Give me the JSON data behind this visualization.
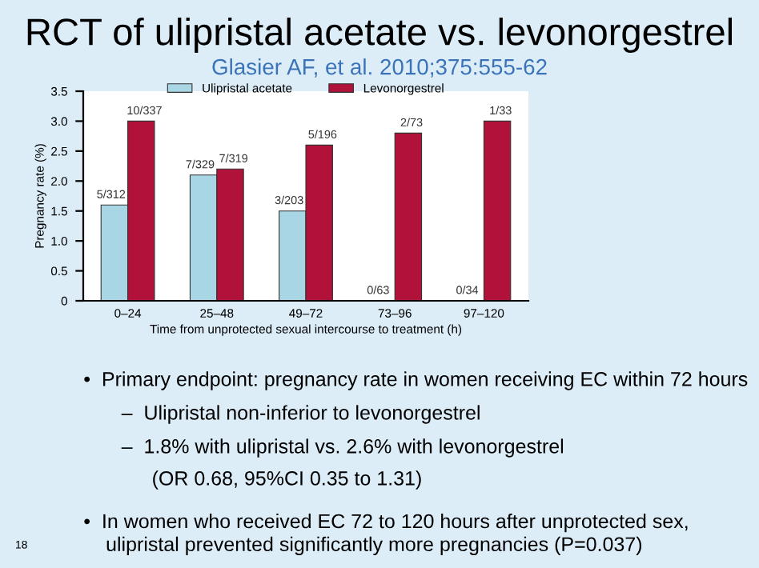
{
  "chart_data": {
    "type": "bar",
    "title": "RCT of ulipristal acetate vs. levonorgestrel",
    "xlabel": "Time from unprotected sexual intercourse to treatment (h)",
    "ylabel": "Pregnancy rate (%)",
    "categories": [
      "0–24",
      "25–48",
      "49–72",
      "73–96",
      "97–120"
    ],
    "series": [
      {
        "name": "Ulipristal acetate",
        "color": "#a9d6e5",
        "values": [
          1.6,
          2.1,
          1.5,
          0,
          0
        ],
        "value_labels": [
          "5/312",
          "7/329",
          "3/203",
          "0/63",
          "0/34"
        ]
      },
      {
        "name": "Levonorgestrel",
        "color": "#b0123a",
        "values": [
          3.0,
          2.2,
          2.6,
          2.8,
          3.0
        ],
        "value_labels": [
          "10/337",
          "7/319",
          "5/196",
          "2/73",
          "1/33"
        ]
      }
    ],
    "ylim": [
      0,
      3.5
    ],
    "yticks": [
      0,
      {
        "value": 0.5,
        "label": "0.5"
      },
      {
        "value": 1,
        "label": "1.0"
      },
      {
        "value": 1.5,
        "label": "1.5"
      },
      {
        "value": 2,
        "label": "2.0"
      },
      {
        "value": 2.5,
        "label": "2.5"
      },
      {
        "value": 3,
        "label": "3.0"
      },
      {
        "value": 3.5,
        "label": "3.5"
      }
    ],
    "legend": "top",
    "grid": false,
    "annotations": [
      "Glasier AF, et al. 2010;375:555-62",
      "•  Primary endpoint: pregnancy rate in women receiving EC within 72 hours",
      "–  Ulipristal non-inferior to levonorgestrel",
      "–  1.8% with ulipristal vs. 2.6% with levonorgestrel",
      "(OR 0.68, 95%CI 0.35 to 1.31)",
      "•  In women who received EC 72 to 120 hours after unprotected sex,\n    ulipristal prevented significantly more pregnancies (P=0.037)",
      "18"
    ]
  }
}
